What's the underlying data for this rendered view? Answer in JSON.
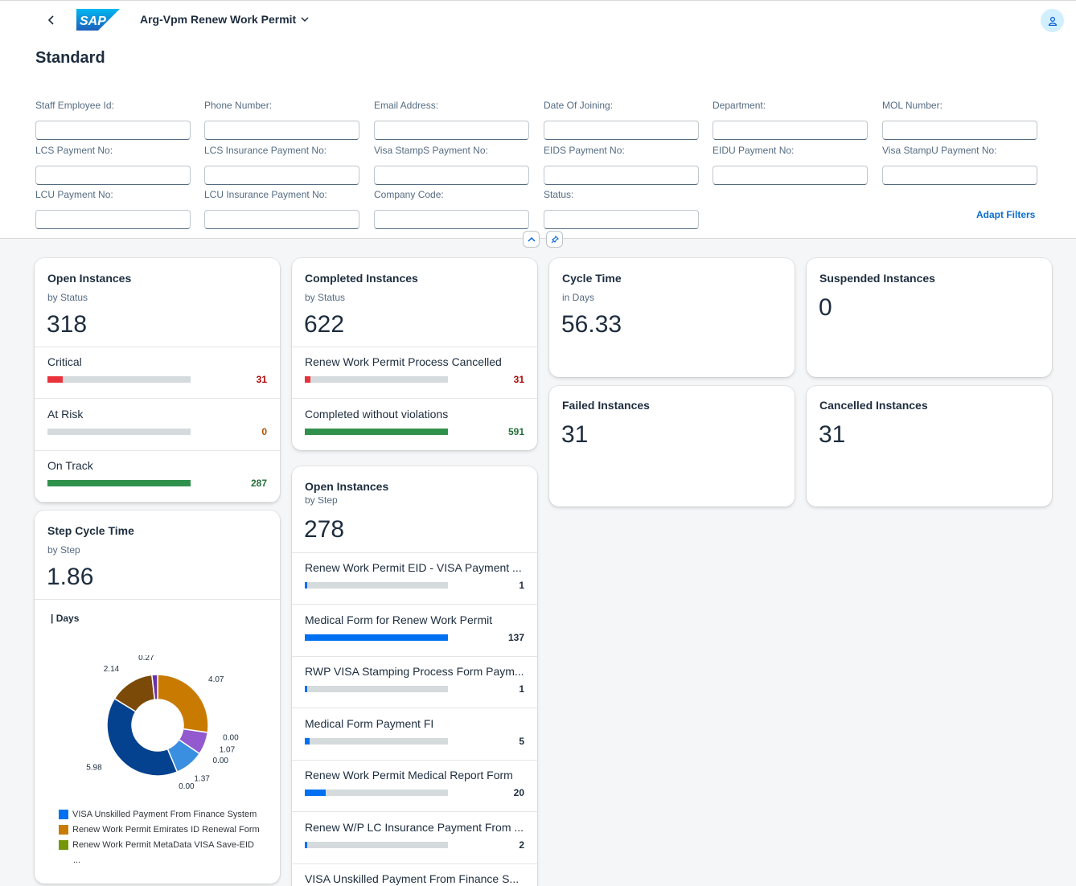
{
  "app": {
    "title": "Arg-Vpm Renew Work Permit",
    "page_title": "Standard",
    "logo_text": "SAP"
  },
  "filters": [
    {
      "label": "Staff Employee Id:",
      "value": ""
    },
    {
      "label": "Phone Number:",
      "value": ""
    },
    {
      "label": "Email Address:",
      "value": ""
    },
    {
      "label": "Date Of Joining:",
      "value": ""
    },
    {
      "label": "Department:",
      "value": ""
    },
    {
      "label": "MOL Number:",
      "value": ""
    },
    {
      "label": "LCS Payment No:",
      "value": ""
    },
    {
      "label": "LCS Insurance Payment No:",
      "value": ""
    },
    {
      "label": "Visa StampS Payment No:",
      "value": ""
    },
    {
      "label": "EIDS Payment No:",
      "value": ""
    },
    {
      "label": "EIDU Payment No:",
      "value": ""
    },
    {
      "label": "Visa StampU Payment No:",
      "value": ""
    },
    {
      "label": "LCU Payment No:",
      "value": ""
    },
    {
      "label": "LCU Insurance Payment No:",
      "value": ""
    },
    {
      "label": "Company Code:",
      "value": ""
    },
    {
      "label": "Status:",
      "value": ""
    }
  ],
  "adapt_filters_label": "Adapt Filters",
  "cards": {
    "open_status": {
      "title": "Open Instances",
      "subtitle": "by Status",
      "kpi": "318",
      "items": [
        {
          "label": "Critical",
          "value": "31",
          "fraction": 0.108,
          "color": "#e9323c",
          "value_color": "#aa0808"
        },
        {
          "label": "At Risk",
          "value": "0",
          "fraction": 0,
          "color": "#e76500",
          "value_color": "#b44f00"
        },
        {
          "label": "On Track",
          "value": "287",
          "fraction": 1.0,
          "color": "#30914c",
          "value_color": "#256f3a"
        }
      ]
    },
    "completed": {
      "title": "Completed Instances",
      "subtitle": "by Status",
      "kpi": "622",
      "items": [
        {
          "label": "Renew Work Permit Process Cancelled",
          "value": "31",
          "fraction": 0.04,
          "color": "#e9323c",
          "value_color": "#aa0808"
        },
        {
          "label": "Completed without violations",
          "value": "591",
          "fraction": 1.0,
          "color": "#30914c",
          "value_color": "#256f3a"
        }
      ]
    },
    "cycle_time": {
      "title": "Cycle Time",
      "subtitle": "in Days",
      "kpi": "56.33"
    },
    "suspended": {
      "title": "Suspended Instances",
      "kpi": "0"
    },
    "failed": {
      "title": "Failed Instances",
      "kpi": "31"
    },
    "cancelled": {
      "title": "Cancelled Instances",
      "kpi": "31"
    },
    "step_cycle": {
      "title": "Step Cycle Time",
      "subtitle": "by Step",
      "kpi": "1.86",
      "unit_label": "| Days",
      "legend": [
        {
          "label": "VISA Unskilled Payment From Finance System",
          "color": "#0070f2"
        },
        {
          "label": "Renew Work Permit Emirates ID Renewal Form",
          "color": "#c87b00"
        },
        {
          "label": "Renew Work Permit MetaData VISA Save-EID",
          "color": "#75980b"
        }
      ],
      "legend_more": "..."
    },
    "open_step": {
      "title": "Open Instances",
      "subtitle": "by Step",
      "kpi": "278",
      "items": [
        {
          "label": "Renew Work Permit EID - VISA Payment ...",
          "value": "1",
          "fraction": 0.015,
          "color": "#0070f2",
          "value_color": "#1d2d3e"
        },
        {
          "label": "Medical Form for Renew Work Permit",
          "value": "137",
          "fraction": 1.0,
          "color": "#0070f2",
          "value_color": "#1d2d3e"
        },
        {
          "label": "RWP VISA Stamping Process Form Paym...",
          "value": "1",
          "fraction": 0.015,
          "color": "#0070f2",
          "value_color": "#1d2d3e"
        },
        {
          "label": "Medical Form Payment FI",
          "value": "5",
          "fraction": 0.036,
          "color": "#0070f2",
          "value_color": "#1d2d3e"
        },
        {
          "label": "Renew Work Permit Medical Report Form",
          "value": "20",
          "fraction": 0.146,
          "color": "#0070f2",
          "value_color": "#1d2d3e"
        },
        {
          "label": "Renew W/P LC Insurance Payment From ...",
          "value": "2",
          "fraction": 0.015,
          "color": "#0070f2",
          "value_color": "#1d2d3e"
        },
        {
          "label": "VISA Unskilled Payment From Finance S...",
          "value": "",
          "fraction": 0,
          "color": "#0070f2",
          "value_color": "#1d2d3e"
        }
      ]
    }
  },
  "chart_data": {
    "type": "pie",
    "variant": "donut",
    "title": "",
    "values": [
      4.07,
      0.0,
      1.07,
      0.0,
      1.37,
      0.0,
      5.98,
      2.14,
      0.27
    ],
    "labels": [
      "4.07",
      "0.00",
      "1.07",
      "0.00",
      "1.37",
      "0.00",
      "5.98",
      "2.14",
      "0.27"
    ],
    "colors": [
      "#c87b00",
      "#75980b",
      "#925ace",
      "#0070f2",
      "#3a8fe0",
      "#0070f2",
      "#04428f",
      "#7b4a08",
      "#6c32a9"
    ]
  }
}
